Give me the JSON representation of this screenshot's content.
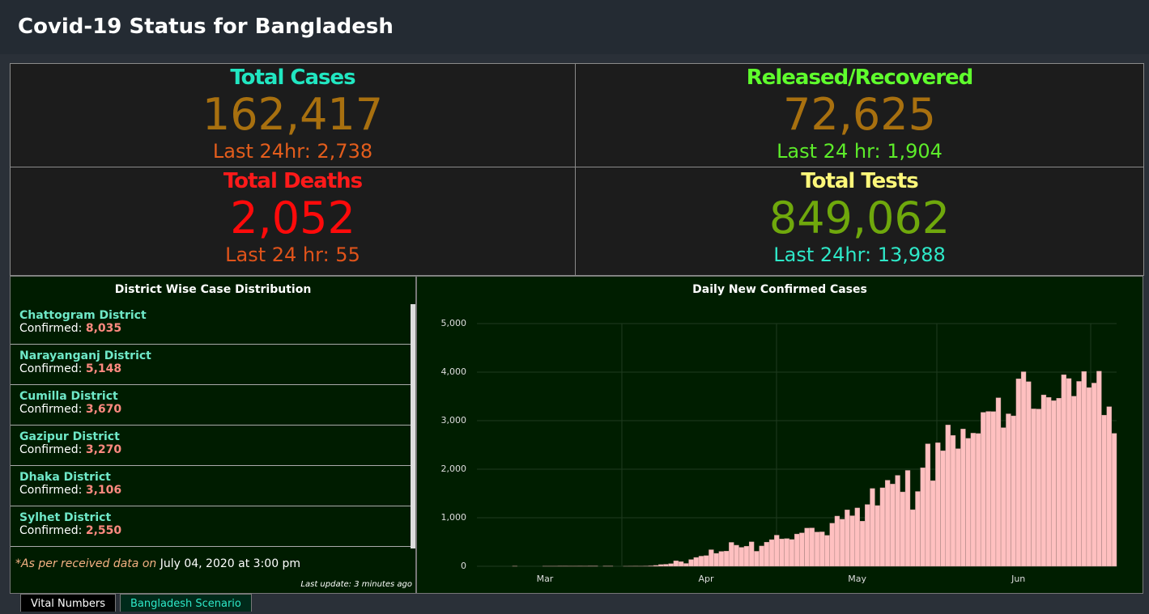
{
  "header": {
    "title": "Covid-19 Status for Bangladesh"
  },
  "stats": [
    {
      "title": "Total Cases",
      "value": "162,417",
      "last24": "Last 24hr: 2,738"
    },
    {
      "title": "Released/Recovered",
      "value": "72,625",
      "last24": "Last 24 hr: 1,904"
    },
    {
      "title": "Total Deaths",
      "value": "2,052",
      "last24": "Last 24 hr: 55"
    },
    {
      "title": "Total Tests",
      "value": "849,062",
      "last24": "Last 24hr: 13,988"
    }
  ],
  "districts": {
    "title": "District Wise Case Distribution",
    "items": [
      {
        "name": "Chattogram District",
        "label": "Confirmed:",
        "value": "8,035"
      },
      {
        "name": "Narayanganj District",
        "label": "Confirmed:",
        "value": "5,148"
      },
      {
        "name": "Cumilla District",
        "label": "Confirmed:",
        "value": "3,670"
      },
      {
        "name": "Gazipur District",
        "label": "Confirmed:",
        "value": "3,270"
      },
      {
        "name": "Dhaka District",
        "label": "Confirmed:",
        "value": "3,106"
      },
      {
        "name": "Sylhet District",
        "label": "Confirmed:",
        "value": "2,550"
      }
    ],
    "note": "*As per received data on",
    "date": "July 04, 2020 at 3:00 pm",
    "update": "Last update: 3 minutes ago"
  },
  "tabs": [
    "Vital Numbers",
    "Bangladesh Scenario"
  ],
  "chart_data": {
    "type": "bar",
    "title": "Daily New Confirmed Cases",
    "color": "#ffc0c0",
    "categories": [
      null,
      null,
      null,
      null,
      null,
      null,
      null,
      null,
      null,
      null,
      null,
      null,
      null,
      "Mar",
      null,
      null,
      null,
      null,
      null,
      null,
      null,
      null,
      null,
      null,
      null,
      null,
      null,
      null,
      null,
      null,
      null,
      null,
      null,
      null,
      null,
      null,
      null,
      null,
      null,
      null,
      null,
      null,
      null,
      null,
      null,
      "Apr",
      null,
      null,
      null,
      null,
      null,
      null,
      null,
      null,
      null,
      null,
      null,
      null,
      null,
      null,
      null,
      null,
      null,
      null,
      null,
      null,
      null,
      null,
      null,
      null,
      null,
      null,
      null,
      null,
      null,
      "May",
      null,
      null,
      null,
      null,
      null,
      null,
      null,
      null,
      null,
      null,
      null,
      null,
      null,
      null,
      null,
      null,
      null,
      null,
      null,
      null,
      null,
      null,
      null,
      null,
      null,
      null,
      null,
      null,
      null,
      null,
      null,
      "Jun",
      null,
      null,
      null,
      null,
      null,
      null,
      null,
      null,
      null,
      null,
      null,
      null,
      null,
      null,
      null,
      null,
      null,
      null,
      null
    ],
    "values": [
      0,
      0,
      0,
      0,
      0,
      0,
      0,
      3,
      0,
      0,
      0,
      0,
      0,
      2,
      2,
      2,
      4,
      4,
      3,
      3,
      4,
      3,
      6,
      6,
      0,
      5,
      4,
      0,
      0,
      1,
      2,
      3,
      2,
      5,
      9,
      18,
      35,
      41,
      54,
      112,
      94,
      58,
      139,
      182,
      209,
      219,
      341,
      266,
      306,
      312,
      492,
      434,
      390,
      414,
      503,
      309,
      418,
      497,
      549,
      641,
      564,
      571,
      552,
      665,
      688,
      786,
      790,
      706,
      709,
      636,
      887,
      1034,
      969,
      1162,
      1041,
      1202,
      930,
      1273,
      1602,
      1251,
      1617,
      1773,
      1694,
      1873,
      1532,
      1975,
      1166,
      1541,
      2029,
      2523,
      1764,
      2545,
      2381,
      2911,
      2695,
      2423,
      2828,
      2635,
      2743,
      2735,
      3171,
      3190,
      3187,
      3471,
      2856,
      3141,
      3099,
      3862,
      4008,
      3803,
      3243,
      3240,
      3531,
      3480,
      3412,
      3462,
      3946,
      3868,
      3504,
      3809,
      4014,
      3682,
      3775,
      4019,
      3114,
      3288,
      2738
    ],
    "ylim": [
      0,
      5000
    ],
    "yticks": [
      0,
      {
        "value": 1000,
        "label": "1,000"
      },
      {
        "value": 2000,
        "label": "2,000"
      },
      {
        "value": 3000,
        "label": "3,000"
      },
      {
        "value": 4000,
        "label": "4,000"
      },
      {
        "value": 5000,
        "label": "5,000"
      }
    ],
    "grid": true
  }
}
